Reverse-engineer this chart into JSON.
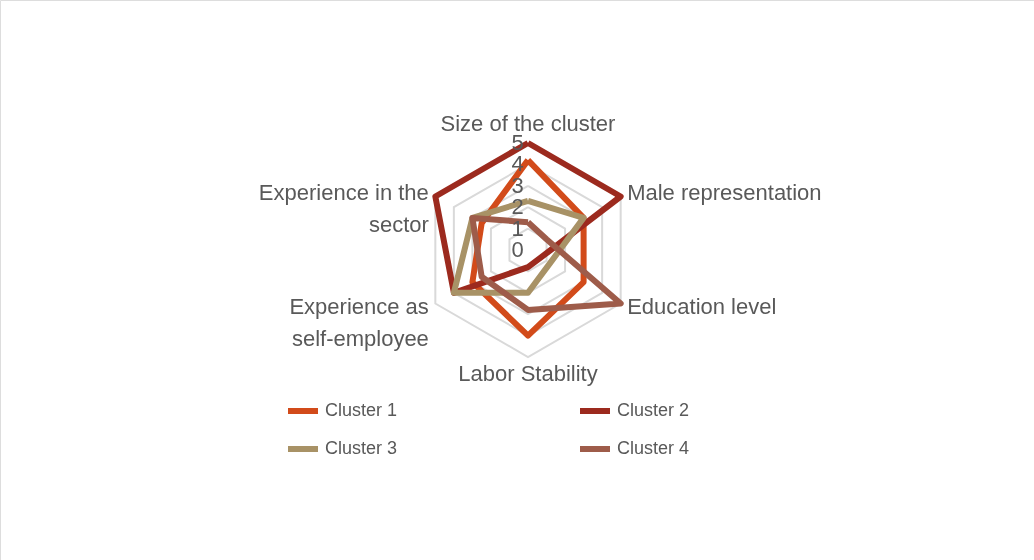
{
  "chart_data": {
    "type": "radar",
    "categories": [
      "Size of the cluster",
      "Male representation",
      "Education level",
      "Labor Stability",
      "Experience as self-employee",
      "Experience in the sector"
    ],
    "series": [
      {
        "name": "Cluster 1",
        "color": "#d24b1a",
        "values": [
          4.2,
          3,
          3,
          4,
          3,
          2.5
        ]
      },
      {
        "name": "Cluster 2",
        "color": "#9c2a1e",
        "values": [
          5,
          5,
          0.7,
          0.8,
          4,
          5
        ]
      },
      {
        "name": "Cluster 3",
        "color": "#a89266",
        "values": [
          2.3,
          3,
          1.2,
          2,
          4,
          3
        ]
      },
      {
        "name": "Cluster 4",
        "color": "#9e5c4a",
        "values": [
          1.3,
          1,
          5,
          2.8,
          2.5,
          3
        ]
      }
    ],
    "ylim": [
      0,
      5
    ],
    "yticks": [
      0,
      1,
      2,
      3,
      4,
      5
    ],
    "grid": true,
    "legend": "bottom"
  }
}
